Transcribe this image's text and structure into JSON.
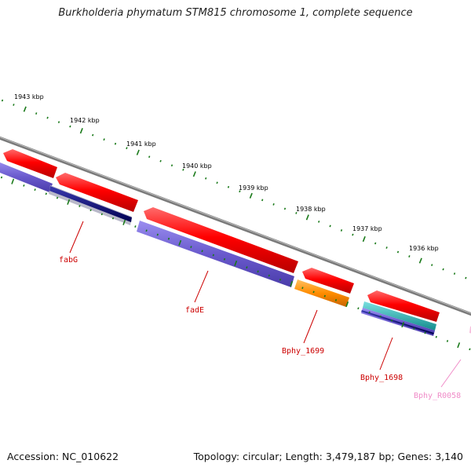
{
  "title": "Burkholderia phymatum STM815 chromosome 1, complete sequence",
  "footer": {
    "accession": "Accession: NC_010622",
    "summary": "Topology: circular; Length: 3,479,187 bp; Genes: 3,140"
  },
  "colors": {
    "backbone": "#7a7a7a",
    "forward_cds": "#e60000",
    "reverse_cds": "#6a5acd",
    "dark_blue": "#0a0a80",
    "orange": "#ff8c00",
    "cyan": "#1ab3b3",
    "tick_green": "#1a7a1a",
    "label_red": "#cc0000",
    "label_pink": "#f08cc8"
  },
  "axis": {
    "unit": "kbp",
    "labels": [
      "1943 kbp",
      "1942 kbp",
      "1941 kbp",
      "1940 kbp",
      "1939 kbp",
      "1938 kbp",
      "1937 kbp",
      "1936 kbp"
    ]
  },
  "genes": [
    {
      "name": "fabG",
      "color": "label_red"
    },
    {
      "name": "fadE",
      "color": "label_red"
    },
    {
      "name": "Bphy_1699",
      "color": "label_red"
    },
    {
      "name": "Bphy_1698",
      "color": "label_red"
    },
    {
      "name": "Bphy_R0058",
      "color": "label_pink"
    }
  ]
}
